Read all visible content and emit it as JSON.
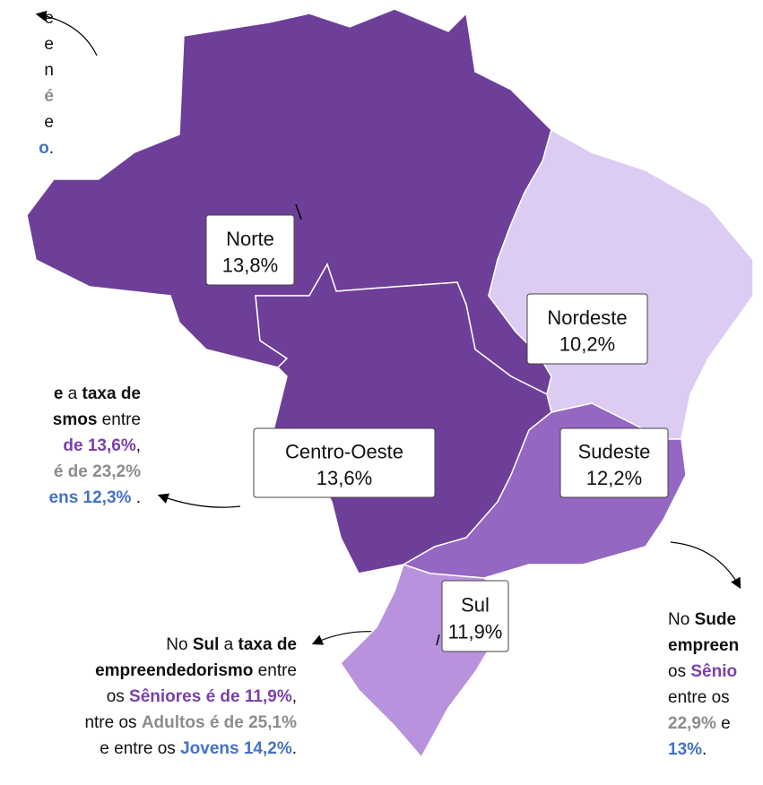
{
  "map": {
    "regions": [
      {
        "name": "Norte",
        "value": "13,8%",
        "color": "#6e3f99"
      },
      {
        "name": "Nordeste",
        "value": "10,2%",
        "color": "#dccbf2"
      },
      {
        "name": "Centro-Oeste",
        "value": "13,6%",
        "color": "#6e3f99"
      },
      {
        "name": "Sudeste",
        "value": "12,2%",
        "color": "#9467c3"
      },
      {
        "name": "Sul",
        "value": "11,9%",
        "color": "#b892dc"
      }
    ]
  },
  "annotations": [
    {
      "align": "right",
      "lines": [
        {
          "runs": [
            {
              "text": "e"
            }
          ]
        },
        {
          "runs": [
            {
              "text": "e"
            }
          ]
        },
        {
          "runs": [
            {
              "text": "n"
            }
          ]
        },
        {
          "runs": [
            {
              "text": "é",
              "style": "gray"
            }
          ]
        },
        {
          "runs": [
            {
              "text": "e"
            }
          ]
        },
        {
          "runs": [
            {
              "text": "o",
              "style": "blue"
            },
            {
              "text": "."
            }
          ]
        }
      ]
    },
    {
      "align": "right",
      "lines": [
        {
          "runs": [
            {
              "text": "e",
              "style": "bold"
            },
            {
              "text": " a "
            },
            {
              "text": "taxa de",
              "style": "bold"
            }
          ]
        },
        {
          "runs": [
            {
              "text": "smos",
              "style": "bold"
            },
            {
              "text": " entre"
            }
          ]
        },
        {
          "runs": [
            {
              "text": " de 13,6%",
              "style": "purple"
            },
            {
              "text": ","
            }
          ]
        },
        {
          "runs": [
            {
              "text": "é de 23,2%",
              "style": "gray"
            }
          ]
        },
        {
          "runs": [
            {
              "text": "ens 12,3%",
              "style": "blue"
            },
            {
              "text": " ."
            }
          ]
        }
      ]
    },
    {
      "align": "right",
      "lines": [
        {
          "runs": [
            {
              "text": "No "
            },
            {
              "text": "Sul",
              "style": "bold"
            },
            {
              "text": " a "
            },
            {
              "text": "taxa de",
              "style": "bold"
            }
          ]
        },
        {
          "runs": [
            {
              "text": "empreendedorismo",
              "style": "bold"
            },
            {
              "text": " entre"
            }
          ]
        },
        {
          "runs": [
            {
              "text": "os "
            },
            {
              "text": "Sêniores é de 11,9%",
              "style": "purple"
            },
            {
              "text": ","
            }
          ]
        },
        {
          "runs": [
            {
              "text": "ntre os "
            },
            {
              "text": "Adultos é de 25,1%",
              "style": "gray"
            }
          ]
        },
        {
          "runs": [
            {
              "text": "e entre os "
            },
            {
              "text": "Jovens 14,2%",
              "style": "blue"
            },
            {
              "text": "."
            }
          ]
        }
      ]
    },
    {
      "align": "left",
      "lines": [
        {
          "runs": [
            {
              "text": "No "
            },
            {
              "text": "Sude",
              "style": "bold"
            }
          ]
        },
        {
          "runs": [
            {
              "text": "empreen",
              "style": "bold"
            }
          ]
        },
        {
          "runs": [
            {
              "text": "os "
            },
            {
              "text": "Sênio",
              "style": "purple"
            }
          ]
        },
        {
          "runs": [
            {
              "text": "entre os "
            }
          ]
        },
        {
          "runs": [
            {
              "text": "22,9%",
              "style": "gray"
            },
            {
              "text": " e "
            }
          ]
        },
        {
          "runs": [
            {
              "text": "13%",
              "style": "blue"
            },
            {
              "text": "."
            }
          ]
        }
      ]
    }
  ]
}
